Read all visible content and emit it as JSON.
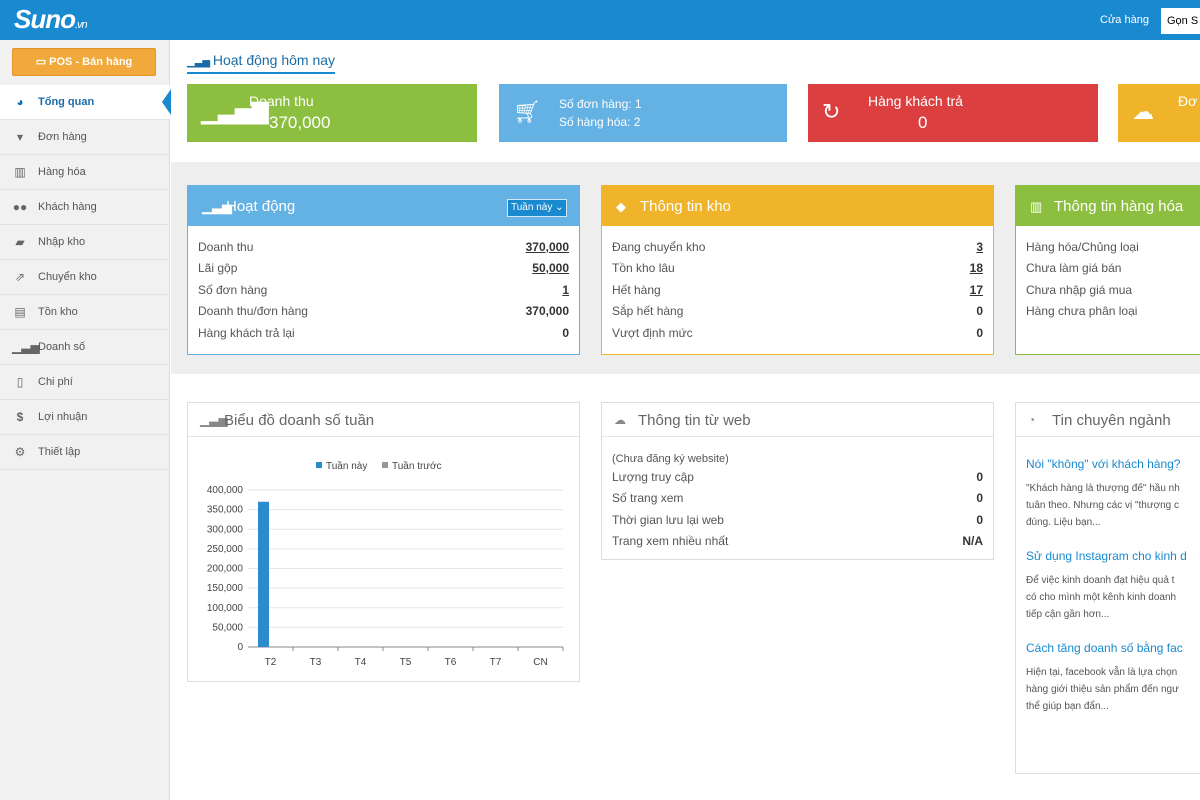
{
  "topbar": {
    "logo_main": "Suno",
    "logo_tld": ".vn",
    "store_label": "Cửa hàng",
    "search_value": "Gọn S"
  },
  "sidebar": {
    "pos_button": "POS - Bán hàng",
    "items": [
      {
        "label": "Tổng quan",
        "icon": "dashboard-icon",
        "active": true
      },
      {
        "label": "Đơn hàng",
        "icon": "cart-icon"
      },
      {
        "label": "Hàng hóa",
        "icon": "barcode-icon"
      },
      {
        "label": "Khách hàng",
        "icon": "users-icon"
      },
      {
        "label": "Nhập kho",
        "icon": "truck-icon"
      },
      {
        "label": "Chuyển kho",
        "icon": "transfer-icon"
      },
      {
        "label": "Tồn kho",
        "icon": "inventory-icon"
      },
      {
        "label": "Doanh số",
        "icon": "signal-icon"
      },
      {
        "label": "Chi phí",
        "icon": "document-icon"
      },
      {
        "label": "Lợi nhuận",
        "icon": "dollar-icon"
      },
      {
        "label": "Thiết lập",
        "icon": "settings-icon"
      }
    ]
  },
  "main": {
    "section_title": "Hoạt động hôm nay",
    "stats": {
      "revenue_label": "Doanh thu",
      "revenue_value": "370,000",
      "orders_label": "Số đơn hàng: 1",
      "items_label": "Số hàng hóa: 2",
      "returns_label": "Hàng khách trả",
      "returns_value": "0",
      "fourth_label": "Đơ"
    },
    "colors": {
      "green": "#8cbf3f",
      "blue": "#64b1e3",
      "red": "#dc3f40",
      "yellow": "#efb42a",
      "header_blue": "#1a8ad0"
    },
    "activity": {
      "title": "Hoạt động",
      "range_select": "Tuần này ⌄",
      "rows": [
        {
          "label": "Doanh thu",
          "value": "370,000",
          "link": true
        },
        {
          "label": "Lãi gộp",
          "value": "50,000",
          "link": true
        },
        {
          "label": "Số đơn hàng",
          "value": "1",
          "link": true
        },
        {
          "label": "Doanh thu/đơn hàng",
          "value": "370,000",
          "link": false
        },
        {
          "label": "Hàng khách trả lại",
          "value": "0",
          "link": false
        }
      ]
    },
    "warehouse": {
      "title": "Thông tin kho",
      "rows": [
        {
          "label": "Đang chuyển kho",
          "value": "3",
          "link": true
        },
        {
          "label": "Tồn kho lâu",
          "value": "18",
          "link": true
        },
        {
          "label": "Hết hàng",
          "value": "17",
          "link": true
        },
        {
          "label": "Sắp hết hàng",
          "value": "0",
          "link": false
        },
        {
          "label": "Vượt định mức",
          "value": "0",
          "link": false
        }
      ]
    },
    "products": {
      "title": "Thông tin hàng hóa",
      "rows": [
        {
          "label": "Hàng hóa/Chủng loại"
        },
        {
          "label": "Chưa làm giá bán"
        },
        {
          "label": "Chưa nhập giá mua"
        },
        {
          "label": "Hàng chưa phân loại"
        }
      ]
    },
    "weekly_chart": {
      "title": "Biểu đồ doanh số tuần"
    },
    "web_info": {
      "title": "Thông tin từ web",
      "note": "(Chưa đăng ký website)",
      "rows": [
        {
          "label": "Lượng truy cập",
          "value": "0"
        },
        {
          "label": "Số trang xem",
          "value": "0"
        },
        {
          "label": "Thời gian lưu lại web",
          "value": "0"
        },
        {
          "label": "Trang xem nhiều nhất",
          "value": "N/A"
        }
      ]
    },
    "news": {
      "title": "Tin chuyên ngành",
      "items": [
        {
          "title": "Nói \"không\" với khách hàng?",
          "lines": [
            "\"Khách hàng là thượng đế\" hầu nh",
            "tuân theo. Nhưng các vị \"thượng c",
            "đúng. Liệu bạn..."
          ]
        },
        {
          "title": "Sử dụng Instagram cho kinh d",
          "lines": [
            "Để việc kinh doanh đạt hiệu quả t",
            "có cho mình một kênh kinh doanh",
            "tiếp cận gần hơn..."
          ]
        },
        {
          "title": "Cách tăng doanh số bằng fac",
          "lines": [
            "Hiện tại, facebook vẫn là lựa chọn",
            "hàng giới thiệu sản phẩm đến ngư",
            "thể giúp bạn đẩn..."
          ]
        }
      ]
    }
  },
  "chart_data": {
    "type": "bar",
    "categories": [
      "T2",
      "T3",
      "T4",
      "T5",
      "T6",
      "T7",
      "CN"
    ],
    "series": [
      {
        "name": "Tuần này",
        "color": "#2a8ccc",
        "values": [
          370000,
          0,
          0,
          0,
          0,
          0,
          0
        ]
      },
      {
        "name": "Tuần trước",
        "color": "#999999",
        "values": [
          0,
          0,
          0,
          0,
          0,
          0,
          0
        ]
      }
    ],
    "ylim": [
      0,
      400000
    ],
    "yticks": [
      "400,000",
      "350,000",
      "300,000",
      "250,000",
      "200,000",
      "150,000",
      "100,000",
      "50,000",
      "0"
    ],
    "grid": true,
    "legend": "top"
  }
}
